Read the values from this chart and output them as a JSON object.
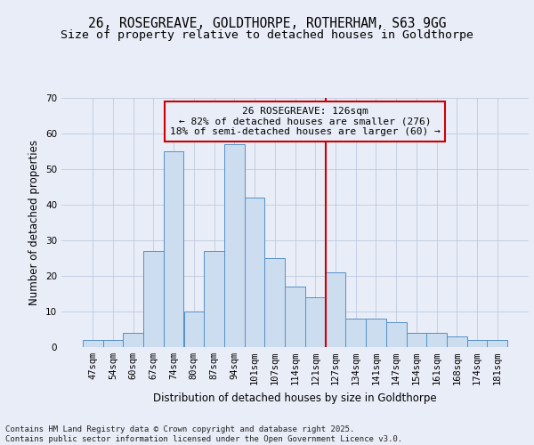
{
  "title1": "26, ROSEGREAVE, GOLDTHORPE, ROTHERHAM, S63 9GG",
  "title2": "Size of property relative to detached houses in Goldthorpe",
  "xlabel": "Distribution of detached houses by size in Goldthorpe",
  "ylabel": "Number of detached properties",
  "categories": [
    "47sqm",
    "54sqm",
    "60sqm",
    "67sqm",
    "74sqm",
    "80sqm",
    "87sqm",
    "94sqm",
    "101sqm",
    "107sqm",
    "114sqm",
    "121sqm",
    "127sqm",
    "134sqm",
    "141sqm",
    "147sqm",
    "154sqm",
    "161sqm",
    "168sqm",
    "174sqm",
    "181sqm"
  ],
  "values": [
    2,
    2,
    4,
    27,
    55,
    10,
    27,
    57,
    42,
    25,
    17,
    14,
    21,
    8,
    8,
    7,
    4,
    4,
    3,
    2,
    2
  ],
  "bar_color": "#ccddf0",
  "bar_edge_color": "#5590c8",
  "background_color": "#e8edf7",
  "vline_color": "#cc0000",
  "annotation_text": "26 ROSEGREAVE: 126sqm\n← 82% of detached houses are smaller (276)\n18% of semi-detached houses are larger (60) →",
  "annotation_box_color": "#cc0000",
  "ylim": [
    0,
    70
  ],
  "yticks": [
    0,
    10,
    20,
    30,
    40,
    50,
    60,
    70
  ],
  "footnote": "Contains HM Land Registry data © Crown copyright and database right 2025.\nContains public sector information licensed under the Open Government Licence v3.0.",
  "title_fontsize": 10.5,
  "subtitle_fontsize": 9.5,
  "axis_label_fontsize": 8.5,
  "tick_fontsize": 7.5,
  "annotation_fontsize": 8,
  "footnote_fontsize": 6.5,
  "vline_index": 12
}
